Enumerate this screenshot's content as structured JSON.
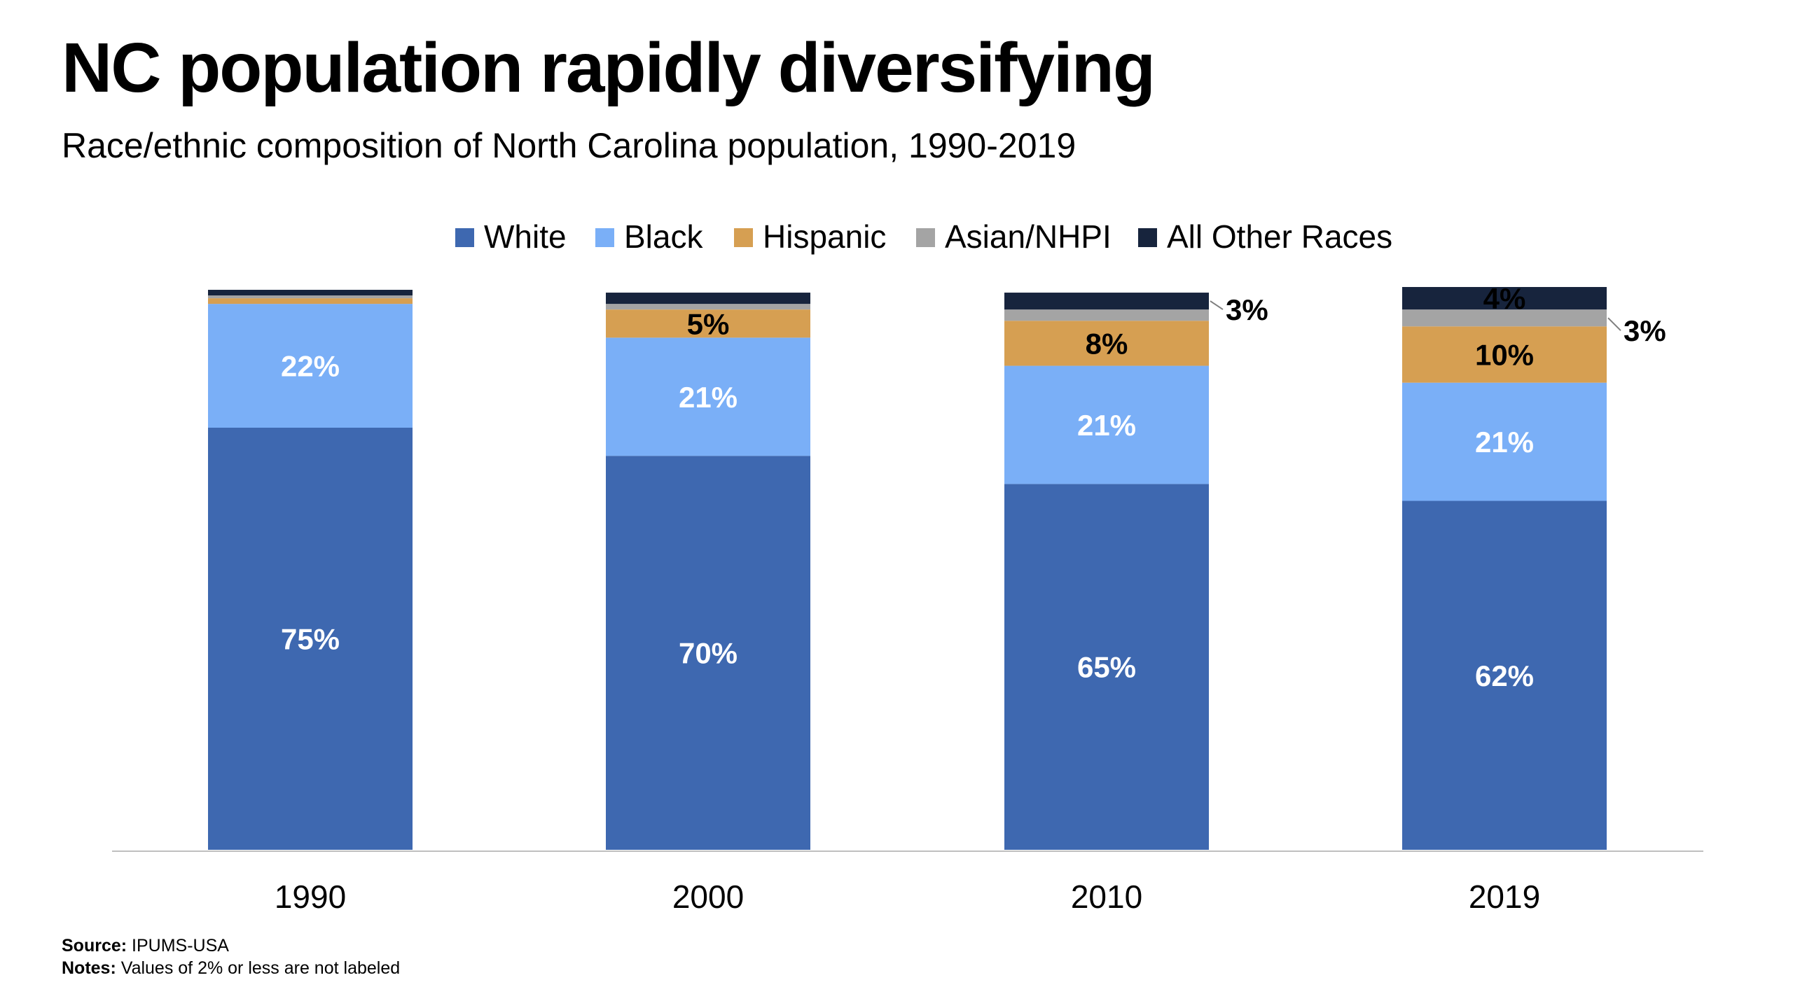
{
  "header": {
    "title": "NC population rapidly diversifying",
    "subtitle": "Race/ethnic composition of North Carolina population, 1990-2019"
  },
  "footer": {
    "source_label": "Source:",
    "source_text": "IPUMS-USA",
    "notes_label": "Notes:",
    "notes_text": "Values of 2% or less are not labeled"
  },
  "colors": {
    "White": "#3e68b0",
    "Black": "#7aaff7",
    "Hispanic": "#d69f52",
    "Asian/NHPI": "#a4a4a4",
    "All Other Races": "#17243d",
    "axis": "#bfbfbf"
  },
  "chart_data": {
    "type": "bar",
    "stacked": true,
    "normalized_percent": true,
    "title": "NC population rapidly diversifying",
    "subtitle": "Race/ethnic composition of North Carolina population, 1990-2019",
    "categories": [
      "1990",
      "2000",
      "2010",
      "2019"
    ],
    "legend_position": "top-center",
    "grid": false,
    "ylim": [
      0,
      100
    ],
    "series": [
      {
        "name": "White",
        "values": [
          75,
          70,
          65,
          62
        ],
        "labels": [
          "75%",
          "70%",
          "65%",
          "62%"
        ]
      },
      {
        "name": "Black",
        "values": [
          22,
          21,
          21,
          21
        ],
        "labels": [
          "22%",
          "21%",
          "21%",
          "21%"
        ]
      },
      {
        "name": "Hispanic",
        "values": [
          1,
          5,
          8,
          10
        ],
        "labels": [
          "",
          "5%",
          "8%",
          "10%"
        ]
      },
      {
        "name": "Asian/NHPI",
        "values": [
          0.5,
          1,
          2,
          3
        ],
        "labels": [
          "",
          "",
          "",
          "3%"
        ]
      },
      {
        "name": "All Other Races",
        "values": [
          1,
          2,
          3,
          4
        ],
        "labels": [
          "",
          "",
          "3%",
          "4%"
        ]
      }
    ]
  }
}
